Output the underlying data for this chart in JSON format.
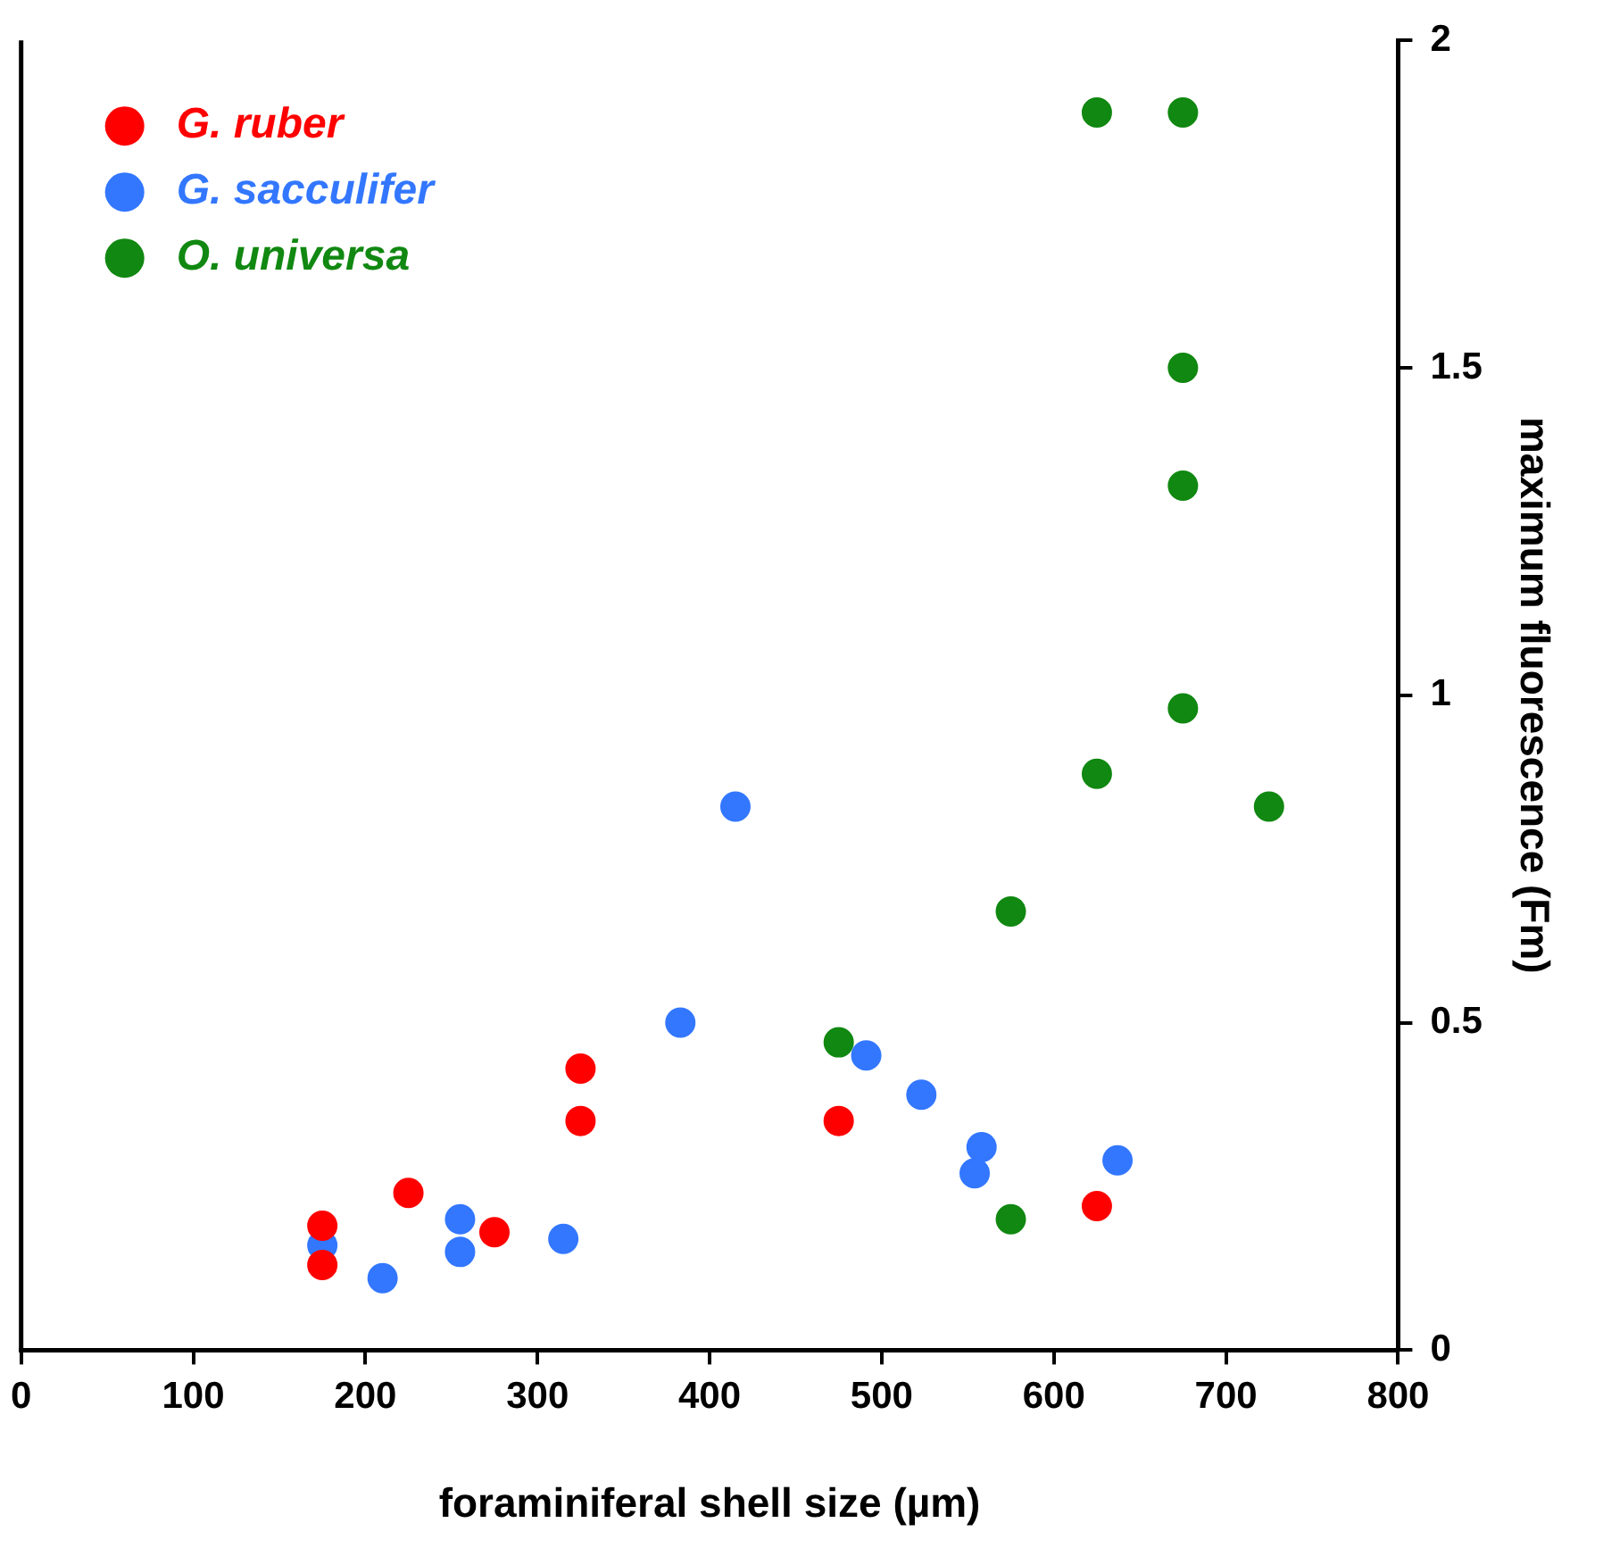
{
  "chart_data": {
    "type": "scatter",
    "xlabel": "foraminiferal shell size (µm)",
    "ylabel": "maximum fluorescence (Fm)",
    "xlim": [
      0,
      800
    ],
    "xticks": [
      0,
      100,
      200,
      300,
      400,
      500,
      600,
      700,
      800
    ],
    "ylim": [
      0,
      2
    ],
    "yticks": [
      0,
      0.5,
      1,
      1.5,
      2
    ],
    "grid": false,
    "legend": "top left",
    "marker": "circle",
    "series": [
      {
        "name": "G. ruber",
        "color": "#ff0000",
        "x": [
          175,
          175,
          225,
          275,
          325,
          325,
          475,
          625
        ],
        "values": [
          0.19,
          0.13,
          0.24,
          0.18,
          0.43,
          0.35,
          0.35,
          0.22
        ]
      },
      {
        "name": "G. sacculifer",
        "color": "#3377ff",
        "x": [
          175,
          210,
          255,
          255,
          315,
          383,
          415,
          491,
          523,
          558,
          554,
          637
        ],
        "values": [
          0.16,
          0.11,
          0.2,
          0.15,
          0.17,
          0.5,
          0.83,
          0.45,
          0.39,
          0.31,
          0.27,
          0.29
        ]
      },
      {
        "name": "O. universa",
        "color": "#118811",
        "x": [
          625,
          675,
          675,
          675,
          675,
          625,
          725,
          575,
          475,
          575
        ],
        "values": [
          1.89,
          1.89,
          1.5,
          1.32,
          0.98,
          0.88,
          0.83,
          0.67,
          0.47,
          0.2
        ]
      }
    ]
  }
}
